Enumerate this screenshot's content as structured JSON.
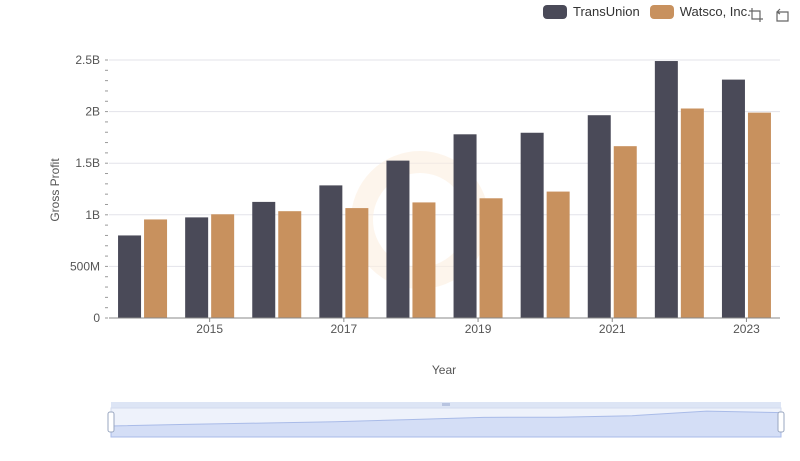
{
  "legend": {
    "items": [
      {
        "label": "TransUnion",
        "color": "#4a4a58"
      },
      {
        "label": "Watsco, Inc.",
        "color": "#c8915e"
      }
    ]
  },
  "toolbox": {
    "zoom_icon": "data-zoom-icon",
    "reset_icon": "restore-icon"
  },
  "chart_data": {
    "type": "bar",
    "xlabel": "Year",
    "ylabel": "Gross Profit",
    "categories": [
      "2014",
      "2015",
      "2016",
      "2017",
      "2018",
      "2019",
      "2020",
      "2021",
      "2022",
      "2023"
    ],
    "x_tick_labels": [
      "2015",
      "2017",
      "2019",
      "2021",
      "2023"
    ],
    "y_tick_labels": [
      "0",
      "500M",
      "1B",
      "1.5B",
      "2B",
      "2.5B"
    ],
    "ylim": [
      0,
      2500000000
    ],
    "grid": true,
    "legend_position": "top-right",
    "series": [
      {
        "name": "TransUnion",
        "color": "#4a4a58",
        "values": [
          800000000,
          975000000,
          1125000000,
          1285000000,
          1525000000,
          1780000000,
          1795000000,
          1965000000,
          2490000000,
          2310000000
        ]
      },
      {
        "name": "Watsco, Inc.",
        "color": "#c8915e",
        "values": [
          955000000,
          1005000000,
          1035000000,
          1065000000,
          1120000000,
          1160000000,
          1225000000,
          1665000000,
          2030000000,
          1990000000
        ]
      }
    ]
  }
}
